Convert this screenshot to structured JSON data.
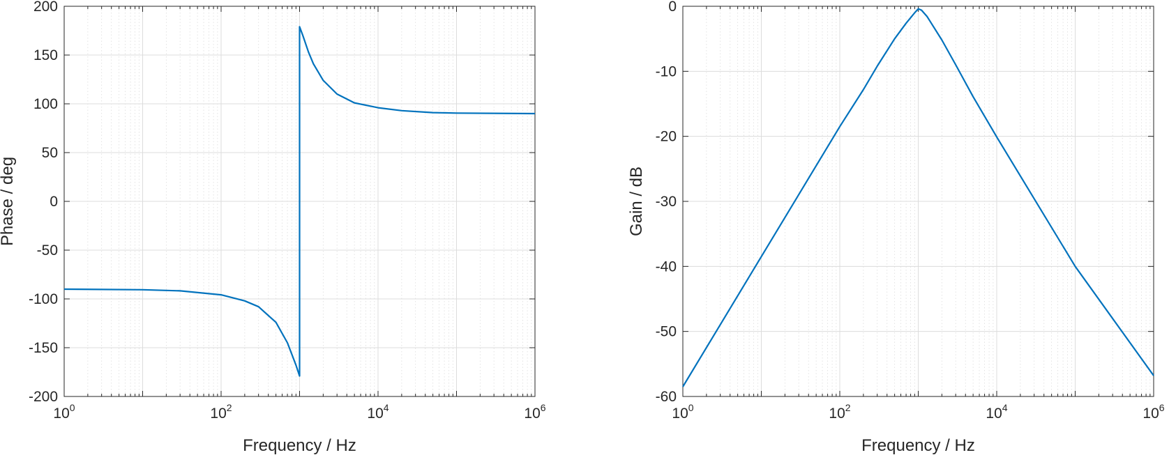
{
  "chart_data": [
    {
      "type": "line",
      "title": "",
      "xlabel": "Frequency / Hz",
      "ylabel": "Phase / deg",
      "xscale": "log",
      "xlim": [
        1,
        1000000
      ],
      "ylim": [
        -200,
        200
      ],
      "grid": "on (major and minor)",
      "x_ticks": [
        {
          "value": 1,
          "base": "10",
          "exp": "0"
        },
        {
          "value": 100,
          "base": "10",
          "exp": "2"
        },
        {
          "value": 10000,
          "base": "10",
          "exp": "4"
        },
        {
          "value": 1000000,
          "base": "10",
          "exp": "6"
        }
      ],
      "y_ticks": [
        {
          "value": 200,
          "label": "200"
        },
        {
          "value": 150,
          "label": "150"
        },
        {
          "value": 100,
          "label": "100"
        },
        {
          "value": 50,
          "label": "50"
        },
        {
          "value": 0,
          "label": "0"
        },
        {
          "value": -50,
          "label": "-50"
        },
        {
          "value": -100,
          "label": "-100"
        },
        {
          "value": -150,
          "label": "-150"
        },
        {
          "value": -200,
          "label": "-200"
        }
      ],
      "series": [
        {
          "color": "#0072BD",
          "x": [
            1,
            10,
            30,
            100,
            200,
            300,
            500,
            700,
            900,
            1000,
            1000,
            1100,
            1300,
            1500,
            2000,
            3000,
            5000,
            10000,
            20000,
            50000,
            100000,
            1000000
          ],
          "y": [
            -90,
            -90.6,
            -91.7,
            -95.8,
            -102,
            -108,
            -124,
            -145,
            -168,
            -179,
            179,
            170,
            153,
            141,
            124,
            110,
            101,
            96,
            93,
            91,
            90.5,
            90
          ]
        }
      ]
    },
    {
      "type": "line",
      "title": "",
      "xlabel": "Frequency / Hz",
      "ylabel": "Gain / dB",
      "xscale": "log",
      "xlim": [
        1,
        1000000
      ],
      "ylim": [
        -60,
        0
      ],
      "grid": "on (major and minor)",
      "x_ticks": [
        {
          "value": 1,
          "base": "10",
          "exp": "0"
        },
        {
          "value": 100,
          "base": "10",
          "exp": "2"
        },
        {
          "value": 10000,
          "base": "10",
          "exp": "4"
        },
        {
          "value": 1000000,
          "base": "10",
          "exp": "6"
        }
      ],
      "y_ticks": [
        {
          "value": 0,
          "label": "0"
        },
        {
          "value": -10,
          "label": "-10"
        },
        {
          "value": -20,
          "label": "-20"
        },
        {
          "value": -30,
          "label": "-30"
        },
        {
          "value": -40,
          "label": "-40"
        },
        {
          "value": -50,
          "label": "-50"
        },
        {
          "value": -60,
          "label": "-60"
        }
      ],
      "series": [
        {
          "color": "#0072BD",
          "x": [
            1,
            10,
            100,
            200,
            300,
            500,
            700,
            900,
            1000,
            1100,
            1300,
            1500,
            2000,
            3000,
            5000,
            10000,
            100000,
            1000000
          ],
          "y": [
            -58.5,
            -38.5,
            -18.5,
            -12.8,
            -9.2,
            -5.0,
            -2.6,
            -1.0,
            -0.4,
            -0.6,
            -1.6,
            -2.8,
            -5.2,
            -9.0,
            -13.9,
            -20.1,
            -40.0,
            -56.8
          ]
        }
      ]
    }
  ]
}
